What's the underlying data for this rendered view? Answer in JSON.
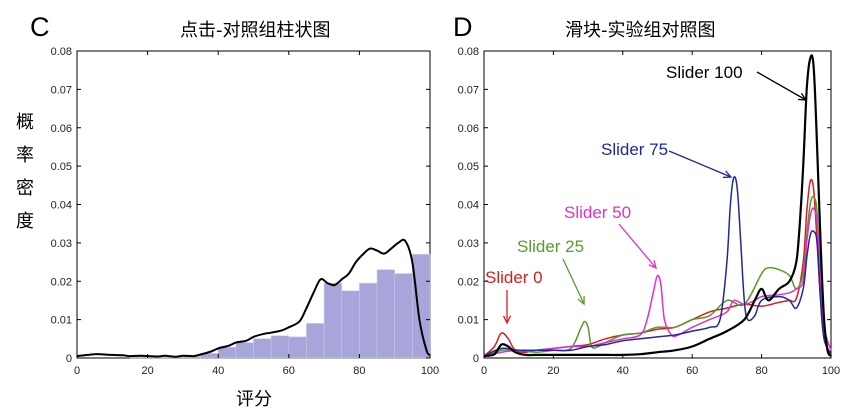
{
  "chart_data": [
    {
      "panel": "C",
      "type": "bar",
      "title": "点击-对照组柱状图",
      "xlabel": "评分",
      "ylabel": "概率密度",
      "xlim": [
        0,
        100
      ],
      "ylim": [
        0,
        0.08
      ],
      "xticks": [
        "0",
        "20",
        "40",
        "60",
        "80",
        "100"
      ],
      "yticks": [
        "0",
        "0.01",
        "0.02",
        "0.03",
        "0.04",
        "0.05",
        "0.06",
        "0.07",
        "0.08"
      ],
      "bins": {
        "edges": [
          0,
          5,
          10,
          15,
          20,
          25,
          30,
          35,
          40,
          45,
          50,
          55,
          60,
          65,
          70,
          75,
          80,
          85,
          90,
          95,
          100
        ],
        "values": [
          0.0,
          0.0,
          0.0,
          0.0003,
          0.0002,
          0.0003,
          0.0004,
          0.0012,
          0.0028,
          0.004,
          0.005,
          0.0058,
          0.0055,
          0.009,
          0.0195,
          0.0175,
          0.0195,
          0.023,
          0.022,
          0.027
        ]
      },
      "series": [
        {
          "color": "#000000",
          "x": [
            0,
            3,
            5,
            8,
            10,
            13,
            15,
            18,
            20,
            23,
            25,
            28,
            30,
            33,
            35,
            38,
            40,
            43,
            45,
            48,
            50,
            53,
            55,
            58,
            60,
            63,
            65,
            67,
            69,
            71,
            73,
            75,
            77,
            79,
            81,
            83,
            85,
            87,
            89,
            91,
            93,
            95,
            97,
            99,
            100
          ],
          "y": [
            0.0005,
            0.0008,
            0.001,
            0.0009,
            0.0008,
            0.0007,
            0.0005,
            0.0006,
            0.0005,
            0.0004,
            0.0006,
            0.0003,
            0.0006,
            0.0005,
            0.0009,
            0.0017,
            0.0025,
            0.0032,
            0.004,
            0.0045,
            0.0055,
            0.0063,
            0.0066,
            0.0072,
            0.008,
            0.0095,
            0.013,
            0.017,
            0.0205,
            0.0195,
            0.019,
            0.0205,
            0.022,
            0.025,
            0.027,
            0.0285,
            0.028,
            0.0272,
            0.0285,
            0.03,
            0.0305,
            0.025,
            0.01,
            0.002,
            0.0008
          ]
        }
      ],
      "bar_color": "#a7a5da"
    },
    {
      "panel": "D",
      "type": "line",
      "title": "滑块-实验组对照图",
      "xlim": [
        0,
        100
      ],
      "ylim": [
        0,
        0.08
      ],
      "xticks": [
        "0",
        "20",
        "40",
        "60",
        "80",
        "100"
      ],
      "yticks": [
        "0",
        "0.01",
        "0.02",
        "0.03",
        "0.04",
        "0.05",
        "0.06",
        "0.07",
        "0.08"
      ],
      "series": [
        {
          "name": "Slider 0",
          "color": "#d42020",
          "x": [
            0,
            3,
            5,
            7,
            9,
            12,
            15,
            20,
            25,
            30,
            35,
            40,
            45,
            50,
            55,
            60,
            65,
            70,
            75,
            80,
            85,
            88,
            90,
            92,
            93,
            94,
            95,
            96,
            97,
            98,
            100
          ],
          "y": [
            0.0005,
            0.003,
            0.0065,
            0.005,
            0.002,
            0.0015,
            0.002,
            0.0025,
            0.003,
            0.0035,
            0.005,
            0.006,
            0.0065,
            0.0075,
            0.008,
            0.01,
            0.012,
            0.013,
            0.014,
            0.0135,
            0.0145,
            0.015,
            0.0155,
            0.025,
            0.038,
            0.046,
            0.044,
            0.03,
            0.015,
            0.005,
            0.001
          ]
        },
        {
          "name": "Slider 25",
          "color": "#5a9a2a",
          "x": [
            0,
            5,
            10,
            15,
            20,
            25,
            28,
            29,
            30,
            31,
            33,
            35,
            40,
            45,
            50,
            55,
            60,
            65,
            70,
            75,
            80,
            82,
            85,
            88,
            90,
            92,
            93,
            94,
            95,
            96,
            97,
            98,
            100
          ],
          "y": [
            0.0005,
            0.002,
            0.002,
            0.0015,
            0.002,
            0.0025,
            0.008,
            0.0095,
            0.008,
            0.003,
            0.003,
            0.004,
            0.006,
            0.0065,
            0.008,
            0.008,
            0.01,
            0.011,
            0.015,
            0.014,
            0.022,
            0.0235,
            0.023,
            0.0215,
            0.018,
            0.022,
            0.032,
            0.04,
            0.042,
            0.038,
            0.02,
            0.008,
            0.002
          ]
        },
        {
          "name": "Slider 50",
          "color": "#e030d0",
          "x": [
            0,
            5,
            10,
            15,
            20,
            25,
            30,
            35,
            40,
            45,
            47,
            49,
            50,
            51,
            52,
            54,
            56,
            60,
            65,
            70,
            72,
            75,
            78,
            80,
            85,
            88,
            90,
            92,
            93,
            94,
            95,
            96,
            97,
            98,
            100
          ],
          "y": [
            0.0005,
            0.0015,
            0.002,
            0.002,
            0.0025,
            0.003,
            0.003,
            0.004,
            0.005,
            0.006,
            0.01,
            0.018,
            0.0215,
            0.019,
            0.01,
            0.006,
            0.006,
            0.008,
            0.01,
            0.012,
            0.015,
            0.014,
            0.015,
            0.016,
            0.0165,
            0.017,
            0.018,
            0.02,
            0.03,
            0.037,
            0.039,
            0.035,
            0.02,
            0.008,
            0.002
          ]
        },
        {
          "name": "Slider 75",
          "color": "#1e2a9a",
          "x": [
            0,
            5,
            10,
            15,
            20,
            25,
            30,
            35,
            40,
            45,
            50,
            55,
            60,
            65,
            68,
            70,
            71,
            72,
            73,
            74,
            75,
            76,
            78,
            80,
            85,
            88,
            90,
            92,
            93,
            94,
            95,
            96,
            97,
            98,
            100
          ],
          "y": [
            0.0005,
            0.0025,
            0.002,
            0.002,
            0.002,
            0.002,
            0.003,
            0.0035,
            0.0045,
            0.005,
            0.0055,
            0.006,
            0.007,
            0.008,
            0.01,
            0.025,
            0.04,
            0.047,
            0.044,
            0.03,
            0.015,
            0.01,
            0.011,
            0.015,
            0.016,
            0.015,
            0.013,
            0.018,
            0.026,
            0.032,
            0.033,
            0.03,
            0.015,
            0.005,
            0.001
          ]
        },
        {
          "name": "Slider 100",
          "color": "#000000",
          "x": [
            0,
            3,
            5,
            7,
            9,
            12,
            15,
            20,
            25,
            30,
            35,
            40,
            45,
            50,
            55,
            60,
            65,
            70,
            75,
            78,
            80,
            82,
            85,
            88,
            90,
            91,
            92,
            93,
            94,
            95,
            96,
            97,
            98,
            99,
            100
          ],
          "y": [
            0.0005,
            0.001,
            0.0035,
            0.003,
            0.0015,
            0.0008,
            0.0008,
            0.0008,
            0.0008,
            0.0008,
            0.0008,
            0.0008,
            0.001,
            0.0015,
            0.002,
            0.003,
            0.005,
            0.007,
            0.01,
            0.015,
            0.018,
            0.015,
            0.018,
            0.02,
            0.025,
            0.035,
            0.05,
            0.07,
            0.078,
            0.076,
            0.055,
            0.03,
            0.01,
            0.002,
            0.0005
          ]
        }
      ]
    }
  ]
}
